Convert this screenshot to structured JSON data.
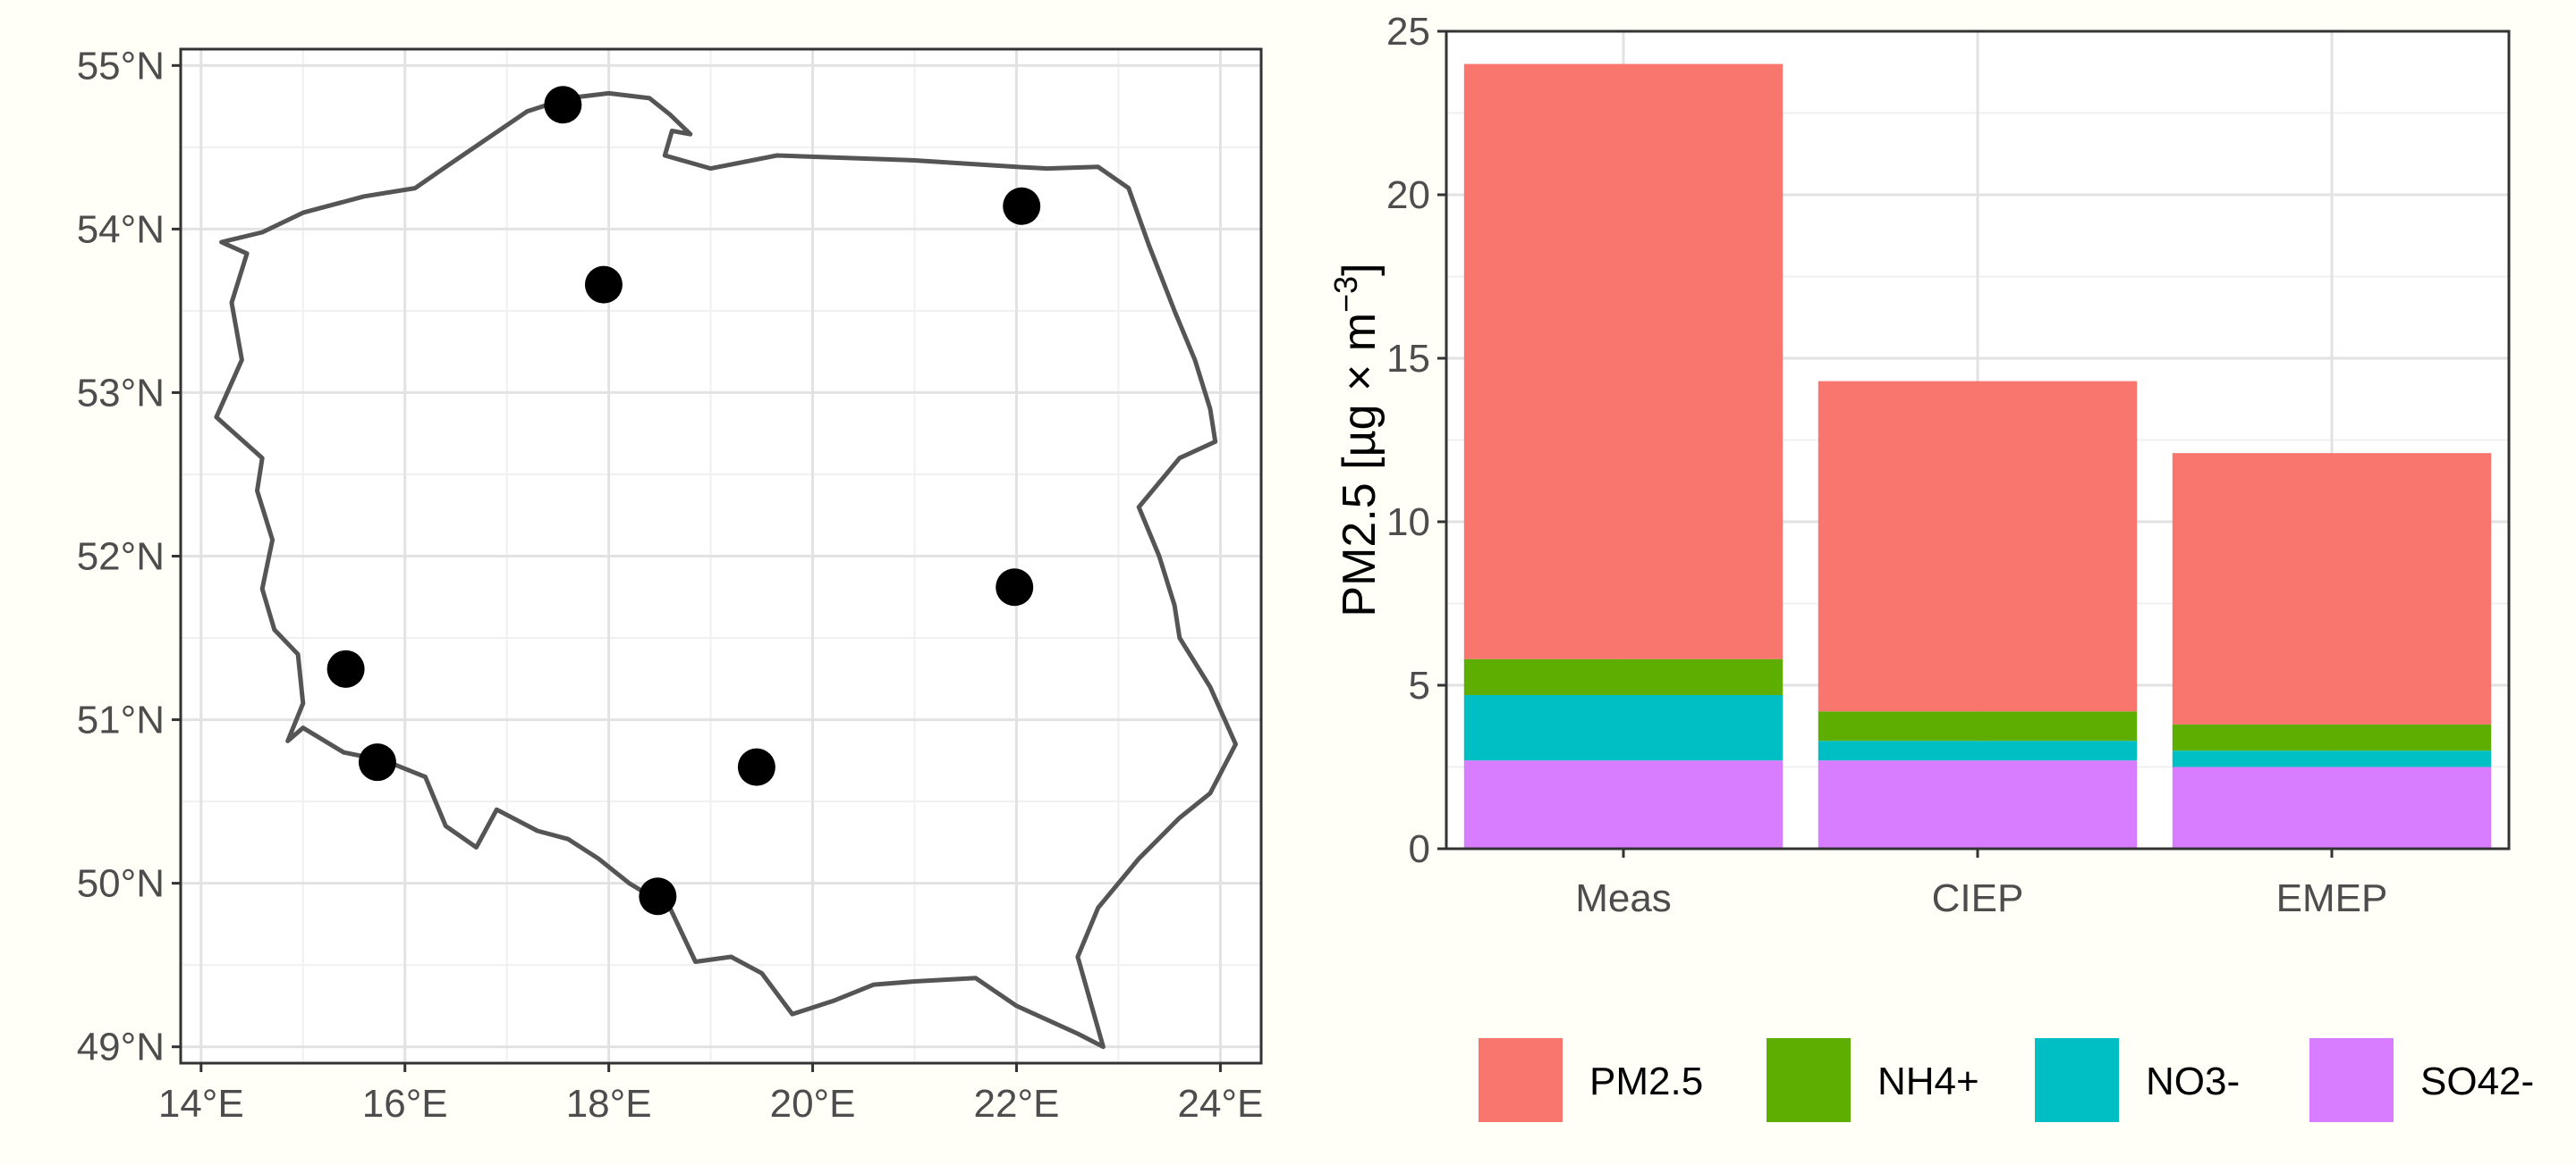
{
  "chart_data": [
    {
      "type": "scatter",
      "subtype": "map",
      "region": "Poland",
      "x_axis": {
        "unit": "degrees E",
        "range": [
          13.8,
          24.4
        ],
        "ticks": [
          14,
          16,
          18,
          20,
          22,
          24
        ],
        "tick_labels": [
          "14°E",
          "16°E",
          "18°E",
          "20°E",
          "22°E",
          "24°E"
        ]
      },
      "y_axis": {
        "unit": "degrees N",
        "range": [
          48.9,
          55.1
        ],
        "ticks": [
          49,
          50,
          51,
          52,
          53,
          54,
          55
        ],
        "tick_labels": [
          "49°N",
          "50°N",
          "51°N",
          "52°N",
          "53°N",
          "54°N",
          "55°N"
        ]
      },
      "grid": true,
      "border_color": "#555555",
      "point_color": "#000000",
      "points": [
        {
          "lon": 17.55,
          "lat": 54.76
        },
        {
          "lon": 22.05,
          "lat": 54.14
        },
        {
          "lon": 17.95,
          "lat": 53.66
        },
        {
          "lon": 21.98,
          "lat": 51.81
        },
        {
          "lon": 15.42,
          "lat": 51.31
        },
        {
          "lon": 15.73,
          "lat": 50.74
        },
        {
          "lon": 19.45,
          "lat": 50.71
        },
        {
          "lon": 18.48,
          "lat": 49.92
        }
      ],
      "border": [
        [
          14.2,
          53.92
        ],
        [
          14.6,
          53.98
        ],
        [
          15.0,
          54.1
        ],
        [
          15.6,
          54.2
        ],
        [
          16.1,
          54.25
        ],
        [
          16.4,
          54.38
        ],
        [
          16.8,
          54.55
        ],
        [
          17.2,
          54.72
        ],
        [
          17.6,
          54.8
        ],
        [
          18.0,
          54.83
        ],
        [
          18.4,
          54.8
        ],
        [
          18.6,
          54.7
        ],
        [
          18.8,
          54.58
        ],
        [
          18.62,
          54.6
        ],
        [
          18.55,
          54.45
        ],
        [
          19.0,
          54.37
        ],
        [
          19.65,
          54.45
        ],
        [
          21.0,
          54.42
        ],
        [
          22.0,
          54.38
        ],
        [
          22.3,
          54.37
        ],
        [
          22.8,
          54.38
        ],
        [
          23.1,
          54.25
        ],
        [
          23.3,
          53.9
        ],
        [
          23.55,
          53.5
        ],
        [
          23.75,
          53.2
        ],
        [
          23.9,
          52.9
        ],
        [
          23.95,
          52.7
        ],
        [
          23.6,
          52.6
        ],
        [
          23.2,
          52.3
        ],
        [
          23.4,
          52.0
        ],
        [
          23.55,
          51.7
        ],
        [
          23.6,
          51.5
        ],
        [
          23.9,
          51.2
        ],
        [
          24.15,
          50.85
        ],
        [
          23.9,
          50.55
        ],
        [
          23.6,
          50.4
        ],
        [
          23.2,
          50.15
        ],
        [
          22.8,
          49.85
        ],
        [
          22.6,
          49.55
        ],
        [
          22.85,
          49.0
        ],
        [
          22.6,
          49.08
        ],
        [
          22.0,
          49.25
        ],
        [
          21.6,
          49.42
        ],
        [
          21.0,
          49.4
        ],
        [
          20.6,
          49.38
        ],
        [
          20.2,
          49.28
        ],
        [
          19.8,
          49.2
        ],
        [
          19.5,
          49.45
        ],
        [
          19.2,
          49.55
        ],
        [
          18.85,
          49.52
        ],
        [
          18.6,
          49.85
        ],
        [
          18.2,
          50.0
        ],
        [
          17.9,
          50.15
        ],
        [
          17.6,
          50.27
        ],
        [
          17.3,
          50.32
        ],
        [
          16.9,
          50.45
        ],
        [
          16.7,
          50.22
        ],
        [
          16.4,
          50.35
        ],
        [
          16.2,
          50.65
        ],
        [
          15.8,
          50.75
        ],
        [
          15.4,
          50.8
        ],
        [
          15.0,
          50.95
        ],
        [
          14.85,
          50.87
        ],
        [
          15.0,
          51.1
        ],
        [
          14.95,
          51.4
        ],
        [
          14.72,
          51.55
        ],
        [
          14.6,
          51.8
        ],
        [
          14.7,
          52.1
        ],
        [
          14.55,
          52.4
        ],
        [
          14.6,
          52.6
        ],
        [
          14.15,
          52.85
        ],
        [
          14.4,
          53.2
        ],
        [
          14.3,
          53.55
        ],
        [
          14.45,
          53.85
        ],
        [
          14.2,
          53.92
        ]
      ]
    },
    {
      "type": "bar",
      "stacked": true,
      "categories": [
        "Meas",
        "CIEP",
        "EMEP"
      ],
      "ylabel_prefix": "PM2.5 [µg × m",
      "ylabel_sup": "−3",
      "ylabel_suffix": "]",
      "ylim": [
        0,
        25
      ],
      "y_ticks": [
        0,
        5,
        10,
        15,
        20,
        25
      ],
      "grid": true,
      "legend_position": "bottom",
      "series": [
        {
          "name": "SO42-",
          "color": "#D87DFF",
          "values": [
            2.7,
            2.7,
            2.5
          ]
        },
        {
          "name": "NO3-",
          "color": "#00BFC4",
          "values": [
            2.0,
            0.6,
            0.5
          ]
        },
        {
          "name": "NH4+",
          "color": "#5DAE00",
          "values": [
            1.1,
            0.9,
            0.8
          ]
        },
        {
          "name": "PM2.5",
          "color": "#F8766D",
          "values": [
            18.2,
            10.1,
            8.3
          ]
        }
      ],
      "legend_order": [
        "PM2.5",
        "NH4+",
        "NO3-",
        "SO42-"
      ]
    }
  ]
}
